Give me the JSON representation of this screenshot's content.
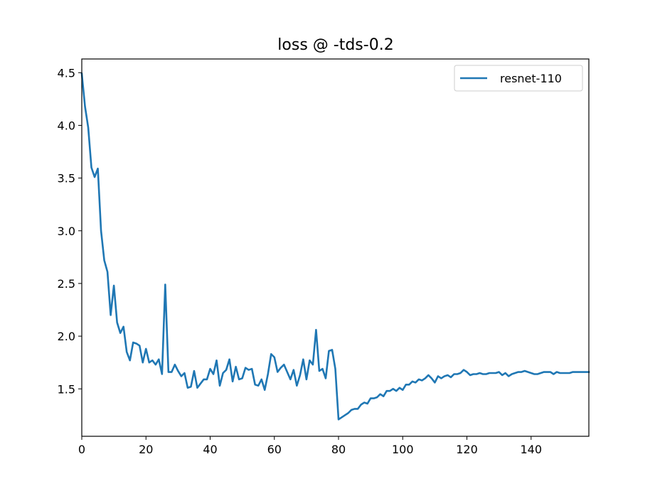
{
  "chart_data": {
    "type": "line",
    "title": "loss @ -tds-0.2",
    "xlabel": "",
    "ylabel": "",
    "xlim": [
      0,
      158
    ],
    "ylim": [
      1.05,
      4.63
    ],
    "xticks": [
      0,
      20,
      40,
      60,
      80,
      100,
      120,
      140
    ],
    "yticks": [
      1.5,
      2.0,
      2.5,
      3.0,
      3.5,
      4.0,
      4.5
    ],
    "xtick_labels": [
      "0",
      "20",
      "40",
      "60",
      "80",
      "100",
      "120",
      "140"
    ],
    "ytick_labels": [
      "1.5",
      "2.0",
      "2.5",
      "3.0",
      "3.5",
      "4.0",
      "4.5"
    ],
    "grid": false,
    "legend_position": "top-right",
    "series": [
      {
        "name": "resnet-110",
        "color": "#1f77b4",
        "x": [
          0,
          1,
          2,
          3,
          4,
          5,
          6,
          7,
          8,
          9,
          10,
          11,
          12,
          13,
          14,
          15,
          16,
          17,
          18,
          19,
          20,
          21,
          22,
          23,
          24,
          25,
          26,
          27,
          28,
          29,
          30,
          31,
          32,
          33,
          34,
          35,
          36,
          37,
          38,
          39,
          40,
          41,
          42,
          43,
          44,
          45,
          46,
          47,
          48,
          49,
          50,
          51,
          52,
          53,
          54,
          55,
          56,
          57,
          58,
          59,
          60,
          61,
          62,
          63,
          64,
          65,
          66,
          67,
          68,
          69,
          70,
          71,
          72,
          73,
          74,
          75,
          76,
          77,
          78,
          79,
          80,
          81,
          82,
          83,
          84,
          85,
          86,
          87,
          88,
          89,
          90,
          91,
          92,
          93,
          94,
          95,
          96,
          97,
          98,
          99,
          100,
          101,
          102,
          103,
          104,
          105,
          106,
          107,
          108,
          109,
          110,
          111,
          112,
          113,
          114,
          115,
          116,
          117,
          118,
          119,
          120,
          121,
          122,
          123,
          124,
          125,
          126,
          127,
          128,
          129,
          130,
          131,
          132,
          133,
          134,
          135,
          136,
          137,
          138,
          139,
          140,
          141,
          142,
          143,
          144,
          145,
          146,
          147,
          148,
          149,
          150,
          151,
          152,
          153,
          154,
          155,
          156,
          157,
          158
        ],
        "y": [
          4.49,
          4.18,
          3.98,
          3.6,
          3.51,
          3.59,
          3.0,
          2.72,
          2.61,
          2.2,
          2.48,
          2.13,
          2.03,
          2.09,
          1.85,
          1.77,
          1.94,
          1.93,
          1.91,
          1.75,
          1.88,
          1.75,
          1.77,
          1.73,
          1.78,
          1.64,
          2.49,
          1.66,
          1.66,
          1.73,
          1.67,
          1.62,
          1.65,
          1.51,
          1.52,
          1.67,
          1.51,
          1.55,
          1.59,
          1.59,
          1.69,
          1.64,
          1.77,
          1.53,
          1.65,
          1.68,
          1.78,
          1.57,
          1.71,
          1.59,
          1.6,
          1.7,
          1.68,
          1.69,
          1.54,
          1.53,
          1.59,
          1.49,
          1.64,
          1.83,
          1.8,
          1.66,
          1.7,
          1.73,
          1.66,
          1.59,
          1.68,
          1.53,
          1.63,
          1.78,
          1.59,
          1.77,
          1.73,
          2.06,
          1.67,
          1.69,
          1.6,
          1.86,
          1.87,
          1.69,
          1.21,
          1.23,
          1.25,
          1.27,
          1.3,
          1.31,
          1.31,
          1.35,
          1.37,
          1.36,
          1.41,
          1.41,
          1.42,
          1.45,
          1.43,
          1.48,
          1.48,
          1.5,
          1.48,
          1.51,
          1.49,
          1.54,
          1.54,
          1.57,
          1.56,
          1.59,
          1.58,
          1.6,
          1.63,
          1.6,
          1.56,
          1.62,
          1.6,
          1.62,
          1.63,
          1.61,
          1.64,
          1.64,
          1.65,
          1.68,
          1.66,
          1.63,
          1.64,
          1.64,
          1.65,
          1.64,
          1.64,
          1.65,
          1.65,
          1.65,
          1.66,
          1.63,
          1.65,
          1.62,
          1.64,
          1.65,
          1.66,
          1.66,
          1.67,
          1.66,
          1.65,
          1.64,
          1.64,
          1.65,
          1.66,
          1.66,
          1.66,
          1.64,
          1.66,
          1.65,
          1.65,
          1.65,
          1.65,
          1.66,
          1.66,
          1.66,
          1.66,
          1.66,
          1.66
        ]
      }
    ]
  }
}
